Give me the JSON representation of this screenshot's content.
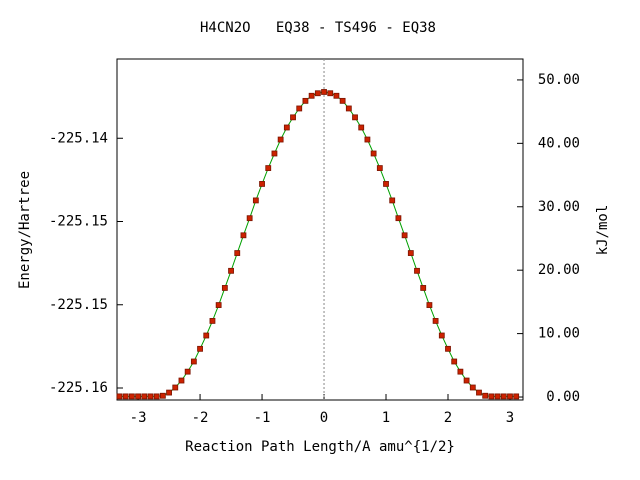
{
  "chart_data": {
    "type": "line",
    "title": "H4CN2O   EQ38 - TS496 - EQ38",
    "xlabel": "Reaction Path Length/A amu^{1/2}",
    "ylabel": "Energy/Hartree",
    "y2label": "kJ/mol",
    "xlim": [
      -3.34,
      3.21
    ],
    "xticks": [
      -3,
      -2,
      -1,
      0,
      1,
      2,
      3
    ],
    "ylim": [
      -225.15572,
      -225.13524
    ],
    "yticks": [
      -225.14,
      {
        "value": -225.145,
        "label": "-225.15"
      },
      -225.15,
      {
        "value": -225.155,
        "label": "-225.16"
      }
    ],
    "y2lim": [
      -0.47,
      53.3
    ],
    "y2ticks": [
      {
        "value": 0,
        "label": "0.00"
      },
      {
        "value": 10,
        "label": "10.00"
      },
      {
        "value": 20,
        "label": "20.00"
      },
      {
        "value": 30,
        "label": "30.00"
      },
      {
        "value": 40,
        "label": "40.00"
      },
      {
        "value": 50,
        "label": "50.00"
      }
    ],
    "x": [
      -3.3,
      -3.2,
      -3.1,
      -3.0,
      -2.9,
      -2.8,
      -2.7,
      -2.6,
      -2.5,
      -2.4,
      -2.3,
      -2.2,
      -2.1,
      -2.0,
      -1.9,
      -1.8,
      -1.7,
      -1.6,
      -1.5,
      -1.4,
      -1.3,
      -1.2,
      -1.1,
      -1.0,
      -0.9,
      -0.8,
      -0.7,
      -0.6,
      -0.5,
      -0.4,
      -0.3,
      -0.2,
      -0.1,
      0,
      0.1,
      0.2,
      0.3,
      0.4,
      0.5,
      0.6,
      0.7,
      0.8,
      0.9,
      1.0,
      1.1,
      1.2,
      1.3,
      1.4,
      1.5,
      1.6,
      1.7,
      1.8,
      1.9,
      2.0,
      2.1,
      2.2,
      2.3,
      2.4,
      2.5,
      2.6,
      2.7,
      2.8,
      2.9,
      3.0,
      3.1
    ],
    "series": [
      {
        "color": "#cc2200",
        "line_color": "#00a000",
        "axis": "y2",
        "values": [
          0.1,
          0.1,
          0.1,
          0.1,
          0.1,
          0.1,
          0.1,
          0.2,
          0.7,
          1.5,
          2.6,
          4.0,
          5.6,
          7.6,
          9.7,
          12.0,
          14.5,
          17.2,
          19.9,
          22.7,
          25.5,
          28.2,
          31.0,
          33.6,
          36.1,
          38.4,
          40.6,
          42.5,
          44.1,
          45.5,
          46.7,
          47.5,
          47.9,
          48.1,
          47.9,
          47.5,
          46.7,
          45.5,
          44.1,
          42.5,
          40.6,
          38.4,
          36.1,
          33.6,
          31.0,
          28.2,
          25.5,
          22.7,
          19.9,
          17.2,
          14.5,
          12.0,
          9.7,
          7.6,
          5.6,
          4.0,
          2.6,
          1.5,
          0.7,
          0.2,
          0.1,
          0.1,
          0.1,
          0.1,
          0.1
        ]
      }
    ]
  }
}
